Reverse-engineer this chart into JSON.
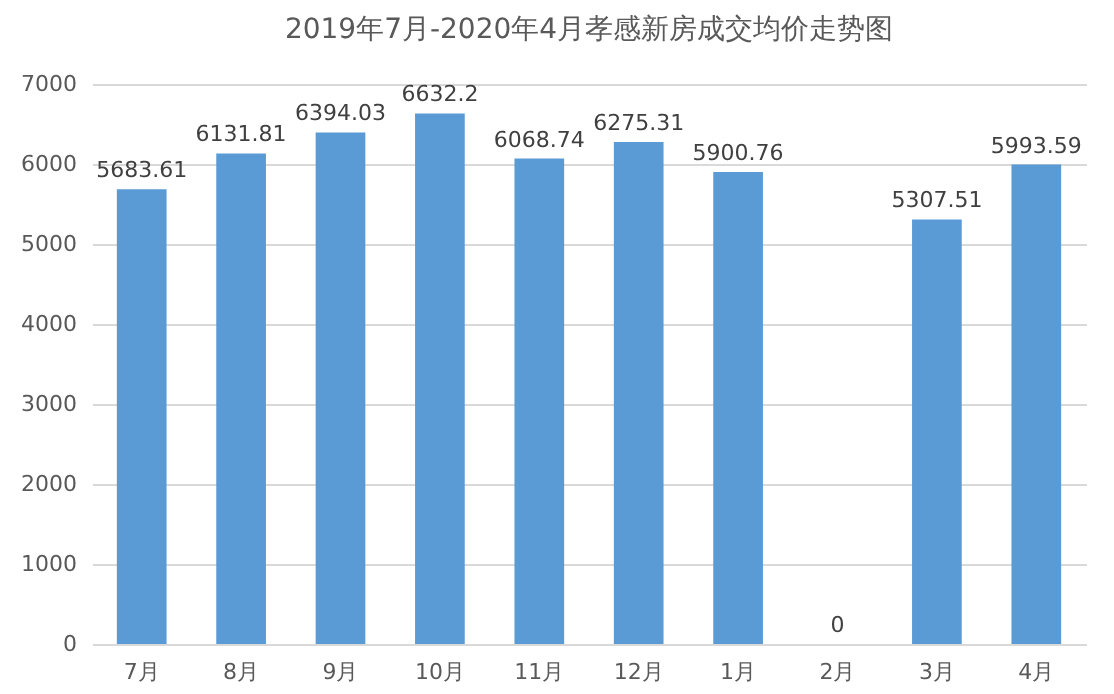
{
  "chart_data": {
    "type": "bar",
    "title": "2019年7月-2020年4月孝感新房成交均价走势图",
    "categories": [
      "7月",
      "8月",
      "9月",
      "10月",
      "11月",
      "12月",
      "1月",
      "2月",
      "3月",
      "4月"
    ],
    "values": [
      5683.61,
      6131.81,
      6394.03,
      6632.2,
      6068.74,
      6275.31,
      5900.76,
      0,
      5307.51,
      5993.59
    ],
    "color": "#5b9bd5",
    "ylim": [
      0,
      7000
    ],
    "yticks": [
      0,
      1000,
      2000,
      3000,
      4000,
      5000,
      6000,
      7000
    ],
    "grid": "y",
    "data_labels": true
  }
}
